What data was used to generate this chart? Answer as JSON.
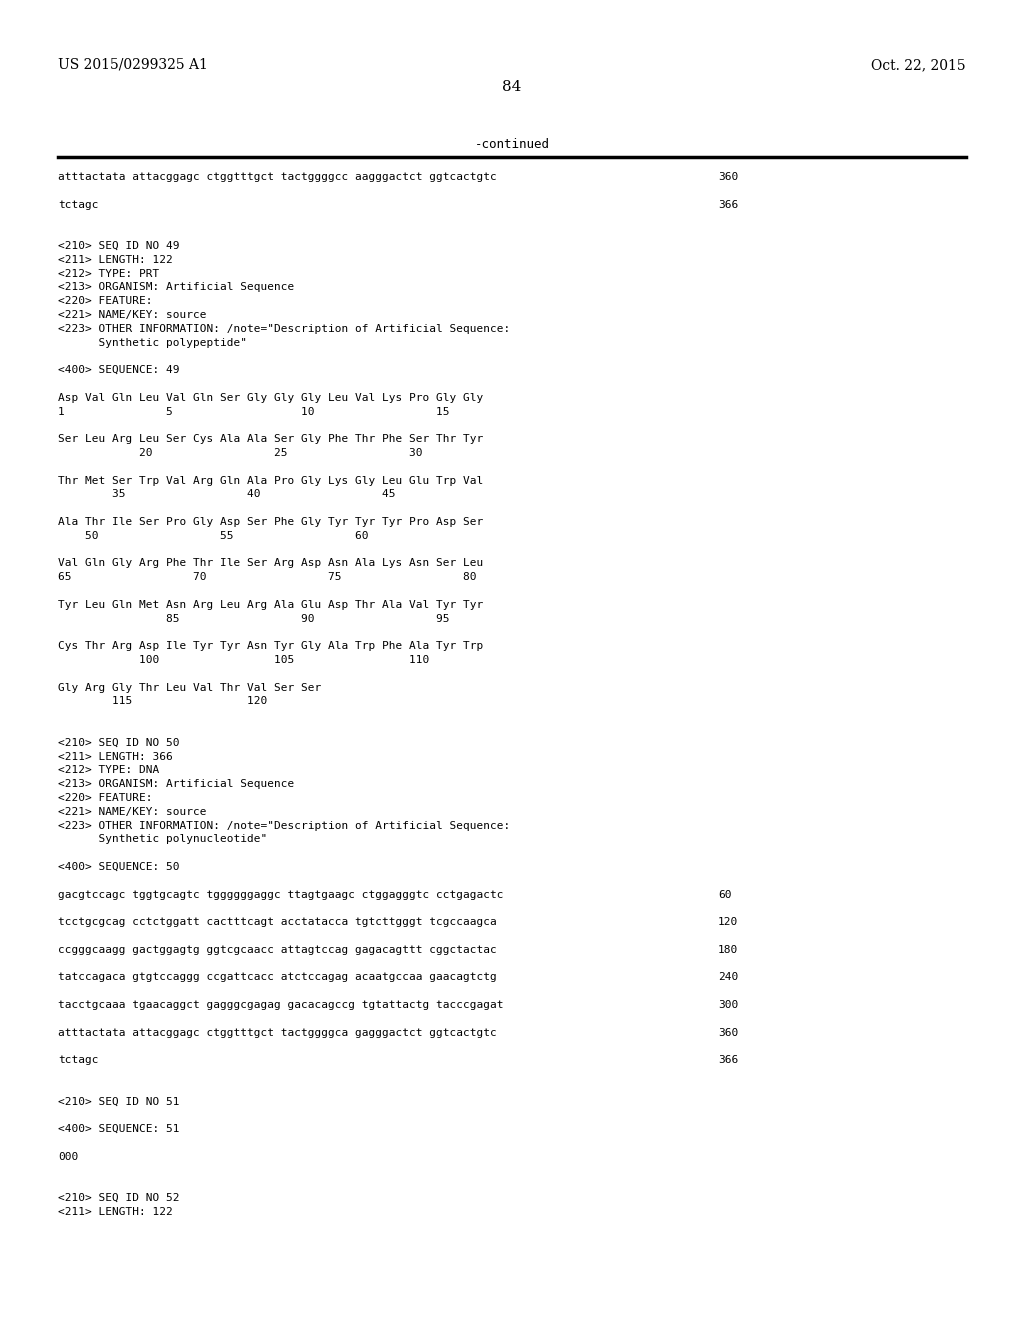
{
  "bg_color": "#ffffff",
  "header_left": "US 2015/0299325 A1",
  "header_right": "Oct. 22, 2015",
  "header_center": "84",
  "continued_text": "-continued",
  "lines": [
    {
      "text": "atttactata attacggagc ctggtttgct tactggggcc aagggactct ggtcactgtc",
      "right": "360"
    },
    {
      "text": ""
    },
    {
      "text": "tctagc",
      "right": "366"
    },
    {
      "text": ""
    },
    {
      "text": ""
    },
    {
      "text": "<210> SEQ ID NO 49"
    },
    {
      "text": "<211> LENGTH: 122"
    },
    {
      "text": "<212> TYPE: PRT"
    },
    {
      "text": "<213> ORGANISM: Artificial Sequence"
    },
    {
      "text": "<220> FEATURE:"
    },
    {
      "text": "<221> NAME/KEY: source"
    },
    {
      "text": "<223> OTHER INFORMATION: /note=\"Description of Artificial Sequence:"
    },
    {
      "text": "      Synthetic polypeptide\""
    },
    {
      "text": ""
    },
    {
      "text": "<400> SEQUENCE: 49"
    },
    {
      "text": ""
    },
    {
      "text": "Asp Val Gln Leu Val Gln Ser Gly Gly Gly Leu Val Lys Pro Gly Gly"
    },
    {
      "text": "1               5                   10                  15"
    },
    {
      "text": ""
    },
    {
      "text": "Ser Leu Arg Leu Ser Cys Ala Ala Ser Gly Phe Thr Phe Ser Thr Tyr"
    },
    {
      "text": "            20                  25                  30"
    },
    {
      "text": ""
    },
    {
      "text": "Thr Met Ser Trp Val Arg Gln Ala Pro Gly Lys Gly Leu Glu Trp Val"
    },
    {
      "text": "        35                  40                  45"
    },
    {
      "text": ""
    },
    {
      "text": "Ala Thr Ile Ser Pro Gly Asp Ser Phe Gly Tyr Tyr Tyr Pro Asp Ser"
    },
    {
      "text": "    50                  55                  60"
    },
    {
      "text": ""
    },
    {
      "text": "Val Gln Gly Arg Phe Thr Ile Ser Arg Asp Asn Ala Lys Asn Ser Leu"
    },
    {
      "text": "65                  70                  75                  80"
    },
    {
      "text": ""
    },
    {
      "text": "Tyr Leu Gln Met Asn Arg Leu Arg Ala Glu Asp Thr Ala Val Tyr Tyr"
    },
    {
      "text": "                85                  90                  95"
    },
    {
      "text": ""
    },
    {
      "text": "Cys Thr Arg Asp Ile Tyr Tyr Asn Tyr Gly Ala Trp Phe Ala Tyr Trp"
    },
    {
      "text": "            100                 105                 110"
    },
    {
      "text": ""
    },
    {
      "text": "Gly Arg Gly Thr Leu Val Thr Val Ser Ser"
    },
    {
      "text": "        115                 120"
    },
    {
      "text": ""
    },
    {
      "text": ""
    },
    {
      "text": "<210> SEQ ID NO 50"
    },
    {
      "text": "<211> LENGTH: 366"
    },
    {
      "text": "<212> TYPE: DNA"
    },
    {
      "text": "<213> ORGANISM: Artificial Sequence"
    },
    {
      "text": "<220> FEATURE:"
    },
    {
      "text": "<221> NAME/KEY: source"
    },
    {
      "text": "<223> OTHER INFORMATION: /note=\"Description of Artificial Sequence:"
    },
    {
      "text": "      Synthetic polynucleotide\""
    },
    {
      "text": ""
    },
    {
      "text": "<400> SEQUENCE: 50"
    },
    {
      "text": ""
    },
    {
      "text": "gacgtccagc tggtgcagtc tggggggaggc ttagtgaagc ctggagggtc cctgagactc",
      "right": "60"
    },
    {
      "text": ""
    },
    {
      "text": "tcctgcgcag cctctggatt cactttcagt acctatacca tgtcttgggt tcgccaagca",
      "right": "120"
    },
    {
      "text": ""
    },
    {
      "text": "ccgggcaagg gactggagtg ggtcgcaacc attagtccag gagacagttt cggctactac",
      "right": "180"
    },
    {
      "text": ""
    },
    {
      "text": "tatccagaca gtgtccaggg ccgattcacc atctccagag acaatgccaa gaacagtctg",
      "right": "240"
    },
    {
      "text": ""
    },
    {
      "text": "tacctgcaaa tgaacaggct gagggcgagag gacacagccg tgtattactg tacccgagat",
      "right": "300"
    },
    {
      "text": ""
    },
    {
      "text": "atttactata attacggagc ctggtttgct tactggggca gagggactct ggtcactgtc",
      "right": "360"
    },
    {
      "text": ""
    },
    {
      "text": "tctagc",
      "right": "366"
    },
    {
      "text": ""
    },
    {
      "text": ""
    },
    {
      "text": "<210> SEQ ID NO 51"
    },
    {
      "text": ""
    },
    {
      "text": "<400> SEQUENCE: 51"
    },
    {
      "text": ""
    },
    {
      "text": "000"
    },
    {
      "text": ""
    },
    {
      "text": ""
    },
    {
      "text": "<210> SEQ ID NO 52"
    },
    {
      "text": "<211> LENGTH: 122"
    }
  ]
}
